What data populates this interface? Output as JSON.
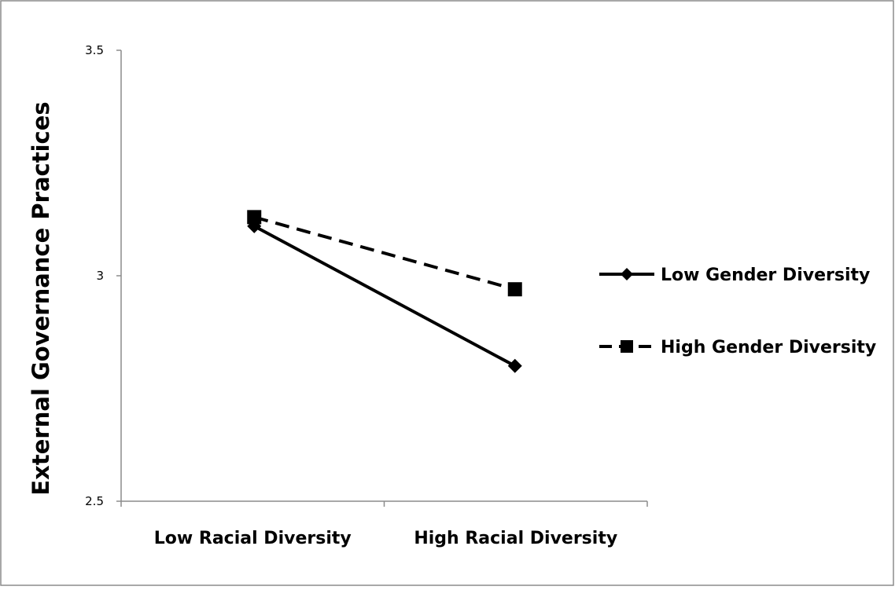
{
  "chart_data": {
    "type": "line",
    "categories": [
      "Low Racial Diversity",
      "High Racial Diversity"
    ],
    "series": [
      {
        "name": "Low Gender Diversity",
        "values": [
          3.11,
          2.8
        ],
        "marker": "diamond",
        "line_style": "solid",
        "color": "#000000"
      },
      {
        "name": "High Gender Diversity",
        "values": [
          3.13,
          2.97
        ],
        "marker": "square",
        "line_style": "dashed",
        "color": "#000000"
      }
    ],
    "title": "",
    "xlabel": "",
    "ylabel": "External Governance Practices",
    "ylim": [
      2.5,
      3.5
    ],
    "yticks": [
      "2.5",
      "3",
      "3.5"
    ],
    "grid": false,
    "legend": "right"
  }
}
